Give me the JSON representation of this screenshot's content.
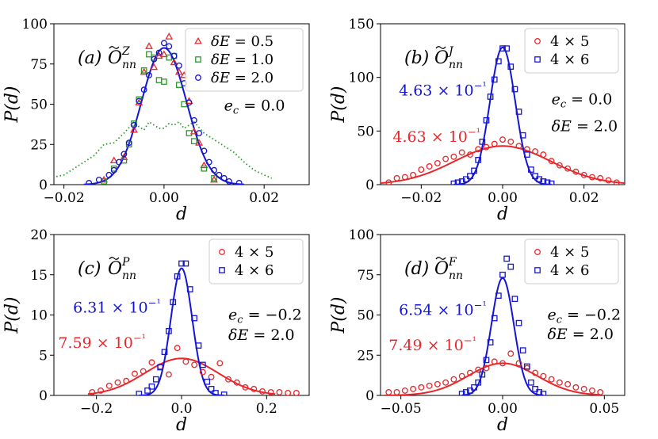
{
  "colors": {
    "red": "#e8272b",
    "blue": "#1515d6",
    "green": "#2a9a2a",
    "black": "#000000"
  },
  "chart_data": [
    {
      "id": "a",
      "type": "scatter",
      "panel_label": "(a)",
      "op_symbol": "O",
      "op_sub": "nn",
      "op_sup": "Z",
      "xlabel": "d",
      "ylabel": "P(d)",
      "xlim": [
        -0.022,
        0.029
      ],
      "ylim": [
        0,
        100
      ],
      "xticks": [
        -0.02,
        0.0,
        0.02
      ],
      "xtick_labels": [
        "−0.02",
        "0.00",
        "0.02"
      ],
      "yticks": [
        0,
        25,
        50,
        75,
        100
      ],
      "ytick_labels": [
        "0",
        "25",
        "50",
        "75",
        "100"
      ],
      "legend": {
        "position": "top-right",
        "entries": [
          "δE = 0.5",
          "δE = 1.0",
          "δE = 2.0"
        ]
      },
      "text_annotations": [
        {
          "text": "e_c = 0.0",
          "color": "black",
          "pos": [
            0.012,
            46
          ]
        }
      ],
      "series": [
        {
          "name": "δE = 0.5",
          "marker": "triangle",
          "color": "red",
          "x": [
            -0.012,
            -0.01,
            -0.008,
            -0.006,
            -0.005,
            -0.004,
            -0.003,
            -0.002,
            -0.001,
            0.0,
            0.001,
            0.002,
            0.003,
            0.004,
            0.005,
            0.006,
            0.007,
            0.008,
            0.01
          ],
          "y": [
            3,
            15,
            17,
            34,
            51,
            70,
            86,
            73,
            80,
            81,
            92,
            76,
            70,
            68,
            52,
            33,
            26,
            12,
            3
          ]
        },
        {
          "name": "δE = 1.0",
          "marker": "square",
          "color": "green",
          "x": [
            -0.012,
            -0.01,
            -0.008,
            -0.007,
            -0.006,
            -0.005,
            -0.004,
            -0.003,
            -0.002,
            -0.001,
            0.0,
            0.001,
            0.002,
            0.003,
            0.004,
            0.005,
            0.006,
            0.008,
            0.01
          ],
          "y": [
            2,
            10,
            15,
            25,
            38,
            53,
            71,
            81,
            79,
            65,
            64,
            79,
            80,
            62,
            50,
            32,
            27,
            10,
            4
          ]
        },
        {
          "name": "δE = 2.0",
          "marker": "circle",
          "color": "blue",
          "x": [
            -0.015,
            -0.013,
            -0.011,
            -0.01,
            -0.009,
            -0.008,
            -0.007,
            -0.006,
            -0.005,
            -0.004,
            -0.003,
            -0.002,
            -0.001,
            0.0,
            0.001,
            0.002,
            0.003,
            0.004,
            0.005,
            0.006,
            0.007,
            0.008,
            0.009,
            0.01,
            0.011,
            0.012,
            0.013,
            0.015
          ],
          "y": [
            1,
            3,
            6,
            9,
            14,
            19,
            26,
            37,
            52,
            59,
            68,
            78,
            82,
            88,
            86,
            80,
            74,
            63,
            51,
            40,
            32,
            21,
            14,
            9,
            6,
            4,
            2,
            1
          ]
        }
      ],
      "curves": [
        {
          "name": "gaussian-fit",
          "color": "blue",
          "style": "solid",
          "x": [
            -0.016,
            0.016
          ],
          "mean": 0.0,
          "sigma": 0.0045,
          "amplitude": 85
        },
        {
          "name": "dotted",
          "color": "green",
          "style": "dotted",
          "x": [
            -0.0215,
            -0.02,
            -0.018,
            -0.016,
            -0.014,
            -0.012,
            -0.01,
            -0.008,
            -0.006,
            -0.005,
            -0.004,
            -0.003,
            -0.002,
            -0.001,
            0.0,
            0.001,
            0.002,
            0.003,
            0.004,
            0.005,
            0.006,
            0.008,
            0.01,
            0.012,
            0.014,
            0.016,
            0.018,
            0.02,
            0.0215
          ],
          "y": [
            5,
            6,
            10,
            14,
            18,
            25,
            26,
            32,
            39,
            36,
            34,
            39,
            37,
            35,
            35,
            38,
            37,
            39,
            35,
            37,
            39,
            32,
            28,
            24,
            20,
            14,
            9,
            6,
            4
          ]
        }
      ]
    },
    {
      "id": "b",
      "type": "scatter",
      "panel_label": "(b)",
      "op_symbol": "O",
      "op_sub": "nn",
      "op_sup": "J",
      "xlabel": "d",
      "ylabel": "P(d)",
      "xlim": [
        -0.03,
        0.03
      ],
      "ylim": [
        0,
        150
      ],
      "xticks": [
        -0.02,
        0.0,
        0.02
      ],
      "xtick_labels": [
        "−0.02",
        "0.00",
        "0.02"
      ],
      "yticks": [
        0,
        50,
        100,
        150
      ],
      "ytick_labels": [
        "0",
        "50",
        "100",
        "150"
      ],
      "legend": {
        "position": "top-right",
        "entries": [
          "4 × 5",
          "4 × 6"
        ]
      },
      "text_annotations": [
        {
          "text": "4.63 × 10⁻¹",
          "color": "blue",
          "pos": [
            -0.0255,
            83
          ]
        },
        {
          "text": "4.63 × 10⁻¹",
          "color": "red",
          "pos": [
            -0.027,
            40
          ]
        },
        {
          "text": "e_c = 0.0",
          "color": "black",
          "pos": [
            0.012,
            75
          ]
        },
        {
          "text": "δE = 2.0",
          "color": "black",
          "pos": [
            0.012,
            50
          ]
        }
      ],
      "series": [
        {
          "name": "4 × 5",
          "marker": "circle",
          "color": "red",
          "x": [
            -0.028,
            -0.026,
            -0.024,
            -0.022,
            -0.02,
            -0.018,
            -0.016,
            -0.014,
            -0.012,
            -0.01,
            -0.008,
            -0.006,
            -0.004,
            -0.002,
            0.0,
            0.002,
            0.004,
            0.006,
            0.008,
            0.01,
            0.012,
            0.014,
            0.016,
            0.018,
            0.02,
            0.022,
            0.024,
            0.026,
            0.028
          ],
          "y": [
            2,
            6,
            7,
            9,
            14,
            17,
            20,
            24,
            26,
            30,
            28,
            33,
            35,
            38,
            42,
            40,
            36,
            33,
            31,
            28,
            22,
            18,
            15,
            12,
            9,
            7,
            6,
            4,
            2
          ]
        },
        {
          "name": "4 × 6",
          "marker": "square",
          "color": "blue",
          "x": [
            -0.012,
            -0.011,
            -0.01,
            -0.009,
            -0.008,
            -0.007,
            -0.006,
            -0.005,
            -0.004,
            -0.003,
            -0.002,
            -0.001,
            0.0,
            0.001,
            0.002,
            0.003,
            0.004,
            0.005,
            0.006,
            0.007,
            0.008,
            0.009,
            0.01,
            0.011,
            0.012
          ],
          "y": [
            1,
            2,
            3,
            5,
            8,
            13,
            23,
            40,
            60,
            82,
            98,
            115,
            127,
            127,
            110,
            89,
            68,
            46,
            28,
            14,
            8,
            5,
            3,
            2,
            1
          ]
        }
      ],
      "curves": [
        {
          "name": "fit-4x5",
          "color": "red",
          "style": "solid",
          "x": [
            -0.03,
            0.03
          ],
          "mean": 0.0,
          "sigma": 0.0118,
          "amplitude": 36
        },
        {
          "name": "fit-4x6",
          "color": "blue",
          "style": "solid",
          "x": [
            -0.012,
            0.012
          ],
          "mean": 0.0,
          "sigma": 0.0031,
          "amplitude": 128
        }
      ]
    },
    {
      "id": "c",
      "type": "scatter",
      "panel_label": "(c)",
      "op_symbol": "O",
      "op_sub": "nn",
      "op_sup": "P",
      "xlabel": "d",
      "ylabel": "P(d)",
      "xlim": [
        -0.3,
        0.3
      ],
      "ylim": [
        0,
        20
      ],
      "xticks": [
        -0.2,
        0.0,
        0.2
      ],
      "xtick_labels": [
        "−0.2",
        "0.0",
        "0.2"
      ],
      "yticks": [
        0,
        5,
        10,
        15,
        20
      ],
      "ytick_labels": [
        "0",
        "5",
        "10",
        "15",
        "20"
      ],
      "legend": {
        "position": "top-right",
        "entries": [
          "4 × 5",
          "4 × 6"
        ]
      },
      "text_annotations": [
        {
          "text": "6.31 × 10⁻¹",
          "color": "blue",
          "pos": [
            -0.255,
            10.3
          ]
        },
        {
          "text": "7.59 × 10⁻¹",
          "color": "red",
          "pos": [
            -0.29,
            5.9
          ]
        },
        {
          "text": "e_c = −0.2",
          "color": "black",
          "pos": [
            0.11,
            9.4
          ]
        },
        {
          "text": "δE = 2.0",
          "color": "black",
          "pos": [
            0.11,
            6.9
          ]
        }
      ],
      "series": [
        {
          "name": "4 × 5",
          "marker": "circle",
          "color": "red",
          "x": [
            -0.21,
            -0.19,
            -0.17,
            -0.15,
            -0.13,
            -0.11,
            -0.09,
            -0.07,
            -0.05,
            -0.03,
            -0.01,
            0.01,
            0.03,
            0.05,
            0.07,
            0.09,
            0.11,
            0.13,
            0.15,
            0.17,
            0.19,
            0.21,
            0.23,
            0.25,
            0.27
          ],
          "y": [
            0.4,
            0.6,
            1.2,
            1.6,
            1.8,
            2.7,
            3.0,
            4.1,
            3.6,
            2.6,
            5.9,
            4.2,
            3.8,
            2.9,
            2.3,
            4.0,
            2.0,
            1.6,
            1.0,
            0.8,
            0.5,
            0.4,
            0.4,
            0.3,
            0.3
          ]
        },
        {
          "name": "4 × 6",
          "marker": "square",
          "color": "blue",
          "x": [
            -0.1,
            -0.08,
            -0.07,
            -0.06,
            -0.05,
            -0.04,
            -0.03,
            -0.02,
            -0.01,
            0.0,
            0.01,
            0.02,
            0.03,
            0.04,
            0.05,
            0.06,
            0.07,
            0.08,
            0.1
          ],
          "y": [
            0.2,
            0.6,
            1.1,
            2.0,
            3.5,
            5.4,
            8.0,
            11.6,
            14.8,
            16.4,
            16.4,
            13.2,
            9.6,
            6.2,
            3.8,
            1.7,
            0.8,
            0.3,
            0.1
          ]
        }
      ],
      "curves": [
        {
          "name": "fit-4x5",
          "color": "red",
          "style": "solid",
          "x": [
            -0.22,
            0.22
          ],
          "mean": 0.0,
          "sigma": 0.086,
          "amplitude": 4.6
        },
        {
          "name": "fit-4x6",
          "color": "blue",
          "style": "solid",
          "x": [
            -0.1,
            0.1
          ],
          "mean": 0.0,
          "sigma": 0.025,
          "amplitude": 15.8
        }
      ]
    },
    {
      "id": "d",
      "type": "scatter",
      "panel_label": "(d)",
      "op_symbol": "O",
      "op_sub": "nn",
      "op_sup": "F",
      "xlabel": "d",
      "ylabel": "P(d)",
      "xlim": [
        -0.06,
        0.06
      ],
      "ylim": [
        0,
        100
      ],
      "xticks": [
        -0.05,
        0.0,
        0.05
      ],
      "xtick_labels": [
        "−0.05",
        "0.00",
        "0.05"
      ],
      "yticks": [
        0,
        25,
        50,
        75,
        100
      ],
      "ytick_labels": [
        "0",
        "25",
        "50",
        "75",
        "100"
      ],
      "legend": {
        "position": "top-right",
        "entries": [
          "4 × 5",
          "4 × 6"
        ]
      },
      "text_annotations": [
        {
          "text": "6.54 × 10⁻¹",
          "color": "blue",
          "pos": [
            -0.051,
            50
          ]
        },
        {
          "text": "7.49 × 10⁻¹",
          "color": "red",
          "pos": [
            -0.056,
            28
          ]
        },
        {
          "text": "e_c = −0.2",
          "color": "black",
          "pos": [
            0.022,
            47
          ]
        },
        {
          "text": "δE = 2.0",
          "color": "black",
          "pos": [
            0.022,
            35
          ]
        }
      ],
      "series": [
        {
          "name": "4 × 5",
          "marker": "circle",
          "color": "red",
          "x": [
            -0.056,
            -0.052,
            -0.048,
            -0.044,
            -0.04,
            -0.036,
            -0.032,
            -0.028,
            -0.024,
            -0.02,
            -0.016,
            -0.012,
            -0.008,
            -0.004,
            0.0,
            0.004,
            0.008,
            0.012,
            0.016,
            0.02,
            0.024,
            0.028,
            0.032,
            0.036,
            0.04,
            0.044,
            0.048
          ],
          "y": [
            2,
            2,
            3,
            4,
            5,
            6,
            7,
            8,
            10,
            12,
            14,
            16,
            17,
            21,
            20,
            26,
            20,
            17,
            14,
            12,
            10,
            8,
            7,
            5,
            4,
            3,
            2
          ]
        },
        {
          "name": "4 × 6",
          "marker": "square",
          "color": "blue",
          "x": [
            -0.02,
            -0.018,
            -0.016,
            -0.014,
            -0.012,
            -0.01,
            -0.008,
            -0.006,
            -0.004,
            -0.002,
            0.0,
            0.002,
            0.004,
            0.006,
            0.008,
            0.01,
            0.012,
            0.014,
            0.016,
            0.018,
            0.02
          ],
          "y": [
            1,
            2,
            3,
            5,
            8,
            13,
            22,
            33,
            48,
            62,
            75,
            85,
            80,
            60,
            45,
            28,
            18,
            8,
            4,
            2,
            1
          ]
        }
      ],
      "curves": [
        {
          "name": "fit-4x5",
          "color": "red",
          "style": "solid",
          "x": [
            -0.058,
            0.048
          ],
          "mean": 0.0,
          "sigma": 0.017,
          "amplitude": 20
        },
        {
          "name": "fit-4x6",
          "color": "blue",
          "style": "solid",
          "x": [
            -0.02,
            0.02
          ],
          "mean": 0.0,
          "sigma": 0.0055,
          "amplitude": 73
        }
      ]
    }
  ]
}
